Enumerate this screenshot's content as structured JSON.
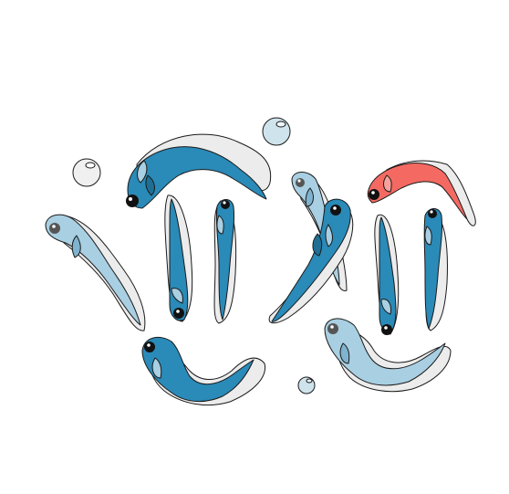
{
  "scene": {
    "palette": {
      "blue": "#2a8ab8",
      "light_blue": "#a9cfe2",
      "red": "#f46a62",
      "shadow": "#ececec",
      "eye": "#111111",
      "bubble": "#cfe3ec",
      "bubble_pale": "#f0f0f0"
    },
    "fish": [
      {
        "id": "blue-fish-curled-top-left",
        "color": "blue"
      },
      {
        "id": "blue-fish-vertical-1",
        "color": "blue"
      },
      {
        "id": "blue-fish-vertical-2",
        "color": "blue"
      },
      {
        "id": "light-blue-fish-left",
        "color": "light_blue"
      },
      {
        "id": "blue-fish-curled-bottom-left",
        "color": "blue"
      },
      {
        "id": "light-blue-fish-center-top",
        "color": "light_blue"
      },
      {
        "id": "blue-fish-diagonal-center",
        "color": "blue"
      },
      {
        "id": "red-fish-top-right",
        "color": "red"
      },
      {
        "id": "blue-fish-vertical-3",
        "color": "blue"
      },
      {
        "id": "blue-fish-vertical-4",
        "color": "blue"
      },
      {
        "id": "light-blue-fish-curled-bottom-right",
        "color": "light_blue"
      }
    ],
    "bubbles": [
      {
        "id": "bubble-large-top",
        "color": "bubble"
      },
      {
        "id": "bubble-left",
        "color": "bubble_pale"
      },
      {
        "id": "bubble-small-bottom",
        "color": "bubble"
      }
    ]
  }
}
